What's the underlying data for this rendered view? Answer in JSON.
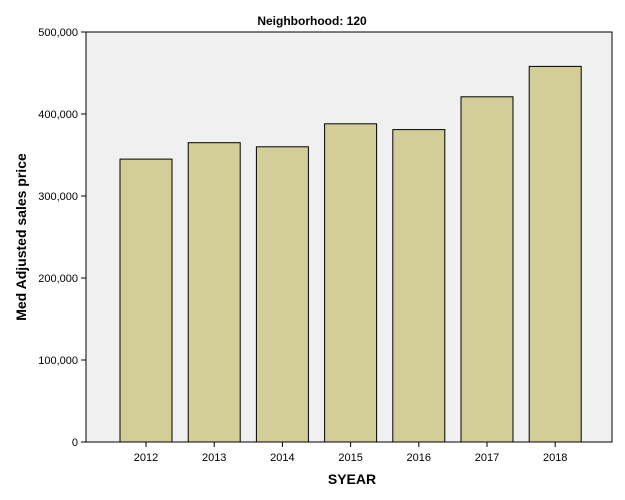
{
  "chart_data": {
    "type": "bar",
    "title": "Neighborhood: 120",
    "xlabel": "SYEAR",
    "ylabel": "Med Adjusted sales price",
    "categories": [
      "2012",
      "2013",
      "2014",
      "2015",
      "2016",
      "2017",
      "2018"
    ],
    "values": [
      345000,
      365000,
      360000,
      388000,
      381000,
      421000,
      458000
    ],
    "ylim": [
      0,
      500000
    ],
    "yticks": [
      0,
      100000,
      200000,
      300000,
      400000,
      500000
    ],
    "ytick_labels": [
      "0",
      "100,000",
      "200,000",
      "300,000",
      "400,000",
      "500,000"
    ],
    "grid": false,
    "legend": "none",
    "colors": {
      "plot_background": "#f0f0f0",
      "bar_fill": "#d3ce97",
      "bar_stroke": "#000000",
      "axis": "#000000"
    }
  }
}
